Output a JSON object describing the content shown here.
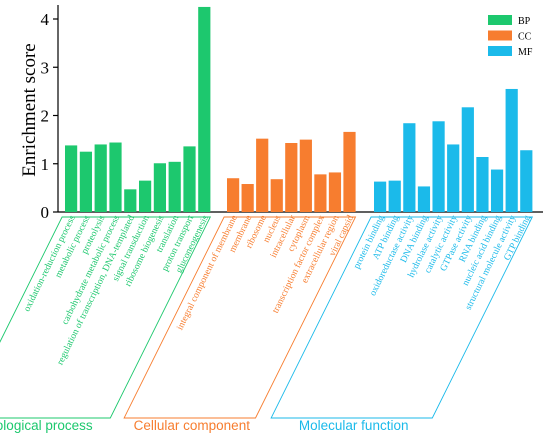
{
  "chart_data": {
    "type": "bar",
    "xlabel": "",
    "ylabel": "Enrichment score",
    "ylim": [
      0,
      4.25
    ],
    "yticks": [
      0,
      1,
      2,
      3,
      4
    ],
    "grid": false,
    "legend_position": "top-right",
    "series": [
      {
        "name": "BP",
        "color": "#1dc86e",
        "group_label": "Biological process",
        "categories": [
          "oxidation-reduction process",
          "metabolic process",
          "proteolysis",
          "carbohydrate metabolic process",
          "regulation of transcription, DNA-templated",
          "signal transduction",
          "ribosome biogenesis",
          "translation",
          "proton transport",
          "gluconeogenesis"
        ],
        "values": [
          1.38,
          1.25,
          1.4,
          1.44,
          0.47,
          0.65,
          1.01,
          1.04,
          1.36,
          4.25
        ]
      },
      {
        "name": "CC",
        "color": "#f77d2f",
        "group_label": "Cellular component",
        "categories": [
          "integral component of membrane",
          "membrane",
          "ribosome",
          "nucleus",
          "intracellular",
          "cytoplasm",
          "transcription factor complex",
          "extracellular region",
          "viral capsid"
        ],
        "values": [
          0.7,
          0.58,
          1.52,
          0.68,
          1.43,
          1.5,
          0.78,
          0.82,
          1.66
        ]
      },
      {
        "name": "MF",
        "color": "#1bbaea",
        "group_label": "Molecular function",
        "categories": [
          "protein binding",
          "ATP binding",
          "oxidoreductase activity",
          "DNA binding",
          "hydrolase activity",
          "catalytic activity",
          "GTPase activity",
          "RNA binding",
          "nucleic acid binding",
          "structural molecule activity",
          "GTP binding"
        ],
        "values": [
          0.63,
          0.65,
          1.84,
          0.53,
          1.88,
          1.4,
          2.17,
          1.14,
          0.88,
          2.55,
          1.28
        ]
      }
    ]
  }
}
